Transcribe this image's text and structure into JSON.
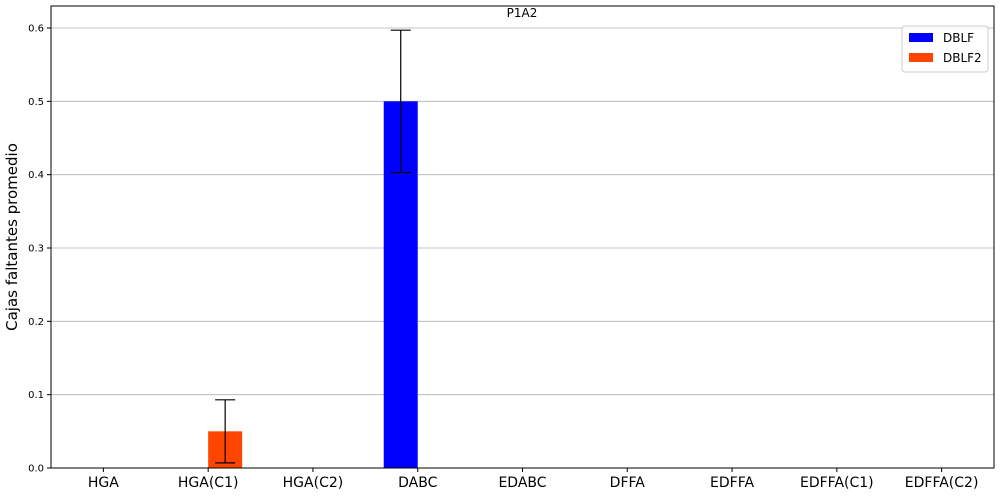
{
  "chart_data": {
    "type": "bar",
    "title": "P1A2",
    "xlabel": "",
    "ylabel": "Cajas faltantes promedio",
    "categories": [
      "HGA",
      "HGA(C1)",
      "HGA(C2)",
      "DABC",
      "EDABC",
      "DFFA",
      "EDFFA",
      "EDFFA(C1)",
      "EDFFA(C2)"
    ],
    "series": [
      {
        "name": "DBLF",
        "color": "#0000ff",
        "values": [
          0,
          0,
          0,
          0.5,
          0,
          0,
          0,
          0,
          0
        ],
        "errors": [
          0,
          0,
          0,
          0.097,
          0,
          0,
          0,
          0,
          0
        ]
      },
      {
        "name": "DBLF2",
        "color": "#ff4500",
        "values": [
          0,
          0.05,
          0,
          0,
          0,
          0,
          0,
          0,
          0
        ],
        "errors": [
          0,
          0.043,
          0,
          0,
          0,
          0,
          0,
          0,
          0
        ]
      }
    ],
    "ylim": [
      0,
      0.63
    ],
    "yticks": [
      "0.0",
      "0.1",
      "0.2",
      "0.3",
      "0.4",
      "0.5",
      "0.6"
    ],
    "grid": "horizontal",
    "legend_position": "top-right"
  }
}
